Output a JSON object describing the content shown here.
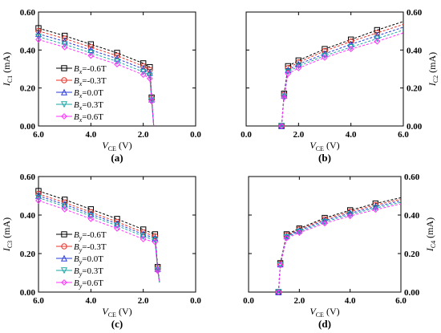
{
  "chart_data": [
    {
      "type": "line",
      "panel_label": "(a)",
      "ylabel": "I_C1 (mA)",
      "xlabel": "V_CE (V)",
      "x_reversed": true,
      "xlim": [
        6.0,
        0.0
      ],
      "ylim": [
        0.0,
        0.6
      ],
      "xticks": [
        "6.0",
        "4.0",
        "2.0",
        "0.0"
      ],
      "yticks": [
        "0.00",
        "0.20",
        "0.40",
        "0.60"
      ],
      "yaxis_side": "left",
      "legend_position": "left-lower",
      "legend_var": "Bx",
      "series": [
        {
          "name": "Bx=-0.6T",
          "color": "#000000",
          "marker": "square",
          "x": [
            6.0,
            5.0,
            4.0,
            3.0,
            2.0,
            1.75,
            1.68,
            1.6
          ],
          "y": [
            0.515,
            0.475,
            0.43,
            0.385,
            0.33,
            0.31,
            0.15,
            0.0
          ]
        },
        {
          "name": "Bx=-0.3T",
          "color": "#e8332a",
          "marker": "circle",
          "x": [
            6.0,
            5.0,
            4.0,
            3.0,
            2.0,
            1.75,
            1.68,
            1.6
          ],
          "y": [
            0.5,
            0.46,
            0.415,
            0.37,
            0.315,
            0.295,
            0.145,
            0.0
          ]
        },
        {
          "name": "Bx=0.0T",
          "color": "#2a3bd8",
          "marker": "triangle",
          "x": [
            6.0,
            5.0,
            4.0,
            3.0,
            2.0,
            1.75,
            1.68,
            1.6
          ],
          "y": [
            0.485,
            0.445,
            0.4,
            0.355,
            0.3,
            0.28,
            0.14,
            0.0
          ]
        },
        {
          "name": "Bx=0.3T",
          "color": "#1aa6a6",
          "marker": "invtriangle",
          "x": [
            6.0,
            5.0,
            4.0,
            3.0,
            2.0,
            1.75,
            1.68,
            1.6
          ],
          "y": [
            0.47,
            0.43,
            0.385,
            0.34,
            0.285,
            0.265,
            0.135,
            0.0
          ]
        },
        {
          "name": "Bx=0.6T",
          "color": "#ff33ff",
          "marker": "diamond",
          "x": [
            6.0,
            5.0,
            4.0,
            3.0,
            2.0,
            1.75,
            1.68,
            1.6
          ],
          "y": [
            0.455,
            0.415,
            0.37,
            0.325,
            0.27,
            0.25,
            0.13,
            0.0
          ]
        }
      ]
    },
    {
      "type": "line",
      "panel_label": "(b)",
      "ylabel": "I_C2 (mA)",
      "xlabel": "V_CE (V)",
      "x_reversed": false,
      "xlim": [
        0.0,
        6.0
      ],
      "ylim": [
        0.0,
        0.6
      ],
      "xticks": [
        "0.0",
        "2.0",
        "4.0",
        "6.0"
      ],
      "yticks": [
        "0.00",
        "0.20",
        "0.40",
        "0.60"
      ],
      "yaxis_side": "right",
      "legend_position": "right-lower",
      "legend_var": "Bx",
      "series": [
        {
          "name": "Bx=-0.6T",
          "color": "#000000",
          "marker": "square",
          "x": [
            1.35,
            1.45,
            1.6,
            2.0,
            3.0,
            4.0,
            5.0,
            6.0
          ],
          "y": [
            0.0,
            0.17,
            0.315,
            0.345,
            0.405,
            0.455,
            0.505,
            0.55
          ]
        },
        {
          "name": "Bx=-0.3T",
          "color": "#e8332a",
          "marker": "circle",
          "x": [
            1.35,
            1.45,
            1.6,
            2.0,
            3.0,
            4.0,
            5.0,
            6.0
          ],
          "y": [
            0.0,
            0.165,
            0.305,
            0.335,
            0.395,
            0.445,
            0.49,
            0.535
          ]
        },
        {
          "name": "Bx=0.0T",
          "color": "#2a3bd8",
          "marker": "triangle",
          "x": [
            1.35,
            1.45,
            1.6,
            2.0,
            3.0,
            4.0,
            5.0,
            6.0
          ],
          "y": [
            0.0,
            0.16,
            0.295,
            0.325,
            0.38,
            0.43,
            0.475,
            0.52
          ]
        },
        {
          "name": "Bx=0.3T",
          "color": "#1aa6a6",
          "marker": "invtriangle",
          "x": [
            1.35,
            1.45,
            1.6,
            2.0,
            3.0,
            4.0,
            5.0,
            6.0
          ],
          "y": [
            0.0,
            0.155,
            0.285,
            0.315,
            0.37,
            0.415,
            0.46,
            0.505
          ]
        },
        {
          "name": "Bx=0.6T",
          "color": "#ff33ff",
          "marker": "diamond",
          "x": [
            1.35,
            1.45,
            1.6,
            2.0,
            3.0,
            4.0,
            5.0,
            6.0
          ],
          "y": [
            0.0,
            0.15,
            0.275,
            0.305,
            0.36,
            0.405,
            0.445,
            0.49
          ]
        }
      ]
    },
    {
      "type": "line",
      "panel_label": "(c)",
      "ylabel": "I_C3 (mA)",
      "xlabel": "V_CE (V)",
      "x_reversed": true,
      "xlim": [
        6.0,
        0.0
      ],
      "ylim": [
        0.0,
        0.6
      ],
      "xticks": [
        "6.0",
        "4.0",
        "2.0",
        "0.0"
      ],
      "yticks": [
        "0.00",
        "0.20",
        "0.40",
        "0.60"
      ],
      "yaxis_side": "left",
      "legend_position": "left-lower",
      "legend_var": "By",
      "series": [
        {
          "name": "By=-0.6T",
          "color": "#000000",
          "marker": "square",
          "x": [
            6.0,
            5.0,
            4.0,
            3.0,
            2.0,
            1.55,
            1.45,
            1.38
          ],
          "y": [
            0.525,
            0.48,
            0.43,
            0.38,
            0.325,
            0.3,
            0.13,
            0.05
          ]
        },
        {
          "name": "By=-0.3T",
          "color": "#e8332a",
          "marker": "circle",
          "x": [
            6.0,
            5.0,
            4.0,
            3.0,
            2.0,
            1.55,
            1.45,
            1.38
          ],
          "y": [
            0.51,
            0.465,
            0.415,
            0.365,
            0.31,
            0.29,
            0.125,
            0.05
          ]
        },
        {
          "name": "By=0.0T",
          "color": "#2a3bd8",
          "marker": "triangle",
          "x": [
            6.0,
            5.0,
            4.0,
            3.0,
            2.0,
            1.55,
            1.45,
            1.38
          ],
          "y": [
            0.5,
            0.455,
            0.405,
            0.355,
            0.3,
            0.28,
            0.12,
            0.05
          ]
        },
        {
          "name": "By=0.3T",
          "color": "#1aa6a6",
          "marker": "invtriangle",
          "x": [
            6.0,
            5.0,
            4.0,
            3.0,
            2.0,
            1.55,
            1.45,
            1.38
          ],
          "y": [
            0.49,
            0.445,
            0.395,
            0.345,
            0.29,
            0.27,
            0.115,
            0.05
          ]
        },
        {
          "name": "By=0.6T",
          "color": "#ff33ff",
          "marker": "diamond",
          "x": [
            6.0,
            5.0,
            4.0,
            3.0,
            2.0,
            1.55,
            1.45,
            1.38
          ],
          "y": [
            0.475,
            0.43,
            0.38,
            0.33,
            0.275,
            0.26,
            0.11,
            0.05
          ]
        }
      ]
    },
    {
      "type": "line",
      "panel_label": "(d)",
      "ylabel": "I_C4 (mA)",
      "xlabel": "V_CE (V)",
      "x_reversed": false,
      "xlim": [
        0.0,
        6.0
      ],
      "ylim": [
        0.0,
        0.6
      ],
      "xticks": [
        "0.0",
        "2.0",
        "4.0",
        "6.0"
      ],
      "yticks": [
        "0.00",
        "0.20",
        "0.40",
        "0.60"
      ],
      "yaxis_side": "right",
      "legend_position": "right-lower",
      "legend_var": "By",
      "series": [
        {
          "name": "By=-0.6T",
          "color": "#000000",
          "marker": "square",
          "x": [
            1.18,
            1.25,
            1.5,
            2.0,
            3.0,
            4.0,
            5.0,
            6.0
          ],
          "y": [
            0.0,
            0.15,
            0.3,
            0.33,
            0.385,
            0.425,
            0.46,
            0.49
          ]
        },
        {
          "name": "By=-0.3T",
          "color": "#e8332a",
          "marker": "circle",
          "x": [
            1.18,
            1.25,
            1.5,
            2.0,
            3.0,
            4.0,
            5.0,
            6.0
          ],
          "y": [
            0.0,
            0.147,
            0.295,
            0.325,
            0.378,
            0.418,
            0.452,
            0.482
          ]
        },
        {
          "name": "By=0.0T",
          "color": "#2a3bd8",
          "marker": "triangle",
          "x": [
            1.18,
            1.25,
            1.5,
            2.0,
            3.0,
            4.0,
            5.0,
            6.0
          ],
          "y": [
            0.0,
            0.144,
            0.29,
            0.32,
            0.371,
            0.41,
            0.444,
            0.474
          ]
        },
        {
          "name": "By=0.3T",
          "color": "#1aa6a6",
          "marker": "invtriangle",
          "x": [
            1.18,
            1.25,
            1.5,
            2.0,
            3.0,
            4.0,
            5.0,
            6.0
          ],
          "y": [
            0.0,
            0.141,
            0.285,
            0.314,
            0.364,
            0.403,
            0.436,
            0.466
          ]
        },
        {
          "name": "By=0.6T",
          "color": "#ff33ff",
          "marker": "diamond",
          "x": [
            1.18,
            1.25,
            1.5,
            2.0,
            3.0,
            4.0,
            5.0,
            6.0
          ],
          "y": [
            0.0,
            0.138,
            0.28,
            0.308,
            0.357,
            0.395,
            0.428,
            0.458
          ]
        }
      ]
    }
  ]
}
